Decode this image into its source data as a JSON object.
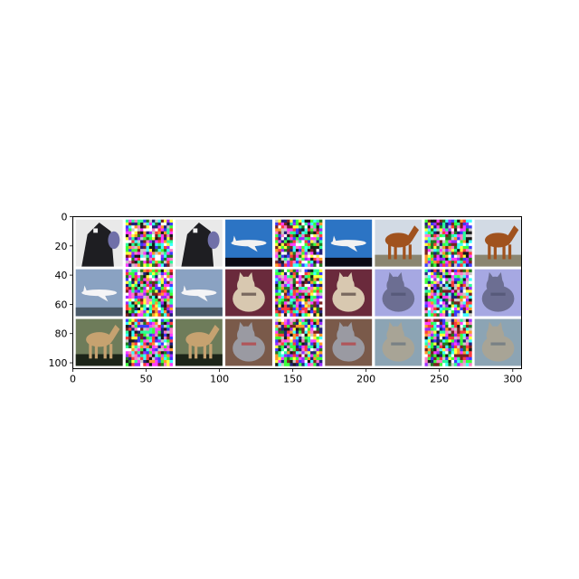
{
  "chart_data": {
    "type": "image_grid",
    "title": "",
    "xlabel": "",
    "ylabel": "",
    "xlim": [
      0,
      306
    ],
    "ylim": [
      104,
      0
    ],
    "x_ticks": [
      0,
      50,
      100,
      150,
      200,
      250,
      300
    ],
    "y_ticks": [
      0,
      20,
      40,
      60,
      80,
      100
    ],
    "x_tick_labels": [
      "0",
      "50",
      "100",
      "150",
      "200",
      "250",
      "300"
    ],
    "y_tick_labels": [
      "0",
      "20",
      "40",
      "60",
      "80",
      "100"
    ],
    "grid": false,
    "grid_layout": {
      "rows": 3,
      "cols": 9,
      "tile_size": 32,
      "padding": 2
    },
    "tiles": [
      {
        "row": 0,
        "col": 0,
        "kind": "image",
        "subject": "cow",
        "colors": {
          "bg": "#e9e9e9",
          "a": "#1e1e22",
          "b": "#7070a8"
        }
      },
      {
        "row": 0,
        "col": 1,
        "kind": "noise"
      },
      {
        "row": 0,
        "col": 2,
        "kind": "image",
        "subject": "cow",
        "colors": {
          "bg": "#e9e9e9",
          "a": "#1e1e22",
          "b": "#7070a8"
        }
      },
      {
        "row": 0,
        "col": 3,
        "kind": "image",
        "subject": "airplane",
        "colors": {
          "bg": "#2c74c4",
          "a": "#f2f2f2",
          "b": "#0a0a14"
        }
      },
      {
        "row": 0,
        "col": 4,
        "kind": "noise"
      },
      {
        "row": 0,
        "col": 5,
        "kind": "image",
        "subject": "airplane",
        "colors": {
          "bg": "#2c74c4",
          "a": "#f2f2f2",
          "b": "#0a0a14"
        }
      },
      {
        "row": 0,
        "col": 6,
        "kind": "image",
        "subject": "horse",
        "colors": {
          "bg": "#d2dae4",
          "a": "#a0521e",
          "b": "#8a8570"
        }
      },
      {
        "row": 0,
        "col": 7,
        "kind": "noise"
      },
      {
        "row": 0,
        "col": 8,
        "kind": "image",
        "subject": "horse",
        "colors": {
          "bg": "#d2dae4",
          "a": "#a0521e",
          "b": "#8a8570"
        }
      },
      {
        "row": 1,
        "col": 0,
        "kind": "image",
        "subject": "airplane",
        "colors": {
          "bg": "#8aa2c2",
          "a": "#f4f4f6",
          "b": "#4a5a6a"
        }
      },
      {
        "row": 1,
        "col": 1,
        "kind": "noise"
      },
      {
        "row": 1,
        "col": 2,
        "kind": "image",
        "subject": "airplane",
        "colors": {
          "bg": "#8aa2c2",
          "a": "#f4f4f6",
          "b": "#4a5a6a"
        }
      },
      {
        "row": 1,
        "col": 3,
        "kind": "image",
        "subject": "cat",
        "colors": {
          "bg": "#6a2a3c",
          "a": "#d8c8b0",
          "b": "#3a2a2a"
        }
      },
      {
        "row": 1,
        "col": 4,
        "kind": "noise"
      },
      {
        "row": 1,
        "col": 5,
        "kind": "image",
        "subject": "cat",
        "colors": {
          "bg": "#6a2a3c",
          "a": "#d8c8b0",
          "b": "#3a2a2a"
        }
      },
      {
        "row": 1,
        "col": 6,
        "kind": "image",
        "subject": "cat",
        "colors": {
          "bg": "#a6a8e2",
          "a": "#6c6e92",
          "b": "#4a4c6a"
        }
      },
      {
        "row": 1,
        "col": 7,
        "kind": "noise"
      },
      {
        "row": 1,
        "col": 8,
        "kind": "image",
        "subject": "cat",
        "colors": {
          "bg": "#a6a8e2",
          "a": "#6c6e92",
          "b": "#4a4c6a"
        }
      },
      {
        "row": 2,
        "col": 0,
        "kind": "image",
        "subject": "horse",
        "colors": {
          "bg": "#6e7c5a",
          "a": "#c6a270",
          "b": "#1c2418"
        }
      },
      {
        "row": 2,
        "col": 1,
        "kind": "noise"
      },
      {
        "row": 2,
        "col": 2,
        "kind": "image",
        "subject": "horse",
        "colors": {
          "bg": "#6e7c5a",
          "a": "#c6a270",
          "b": "#1c2418"
        }
      },
      {
        "row": 2,
        "col": 3,
        "kind": "image",
        "subject": "cat",
        "colors": {
          "bg": "#7a5a4a",
          "a": "#9a9aa2",
          "b": "#c02a2a"
        }
      },
      {
        "row": 2,
        "col": 4,
        "kind": "noise"
      },
      {
        "row": 2,
        "col": 5,
        "kind": "image",
        "subject": "cat",
        "colors": {
          "bg": "#7a5a4a",
          "a": "#9a9aa2",
          "b": "#c02a2a"
        }
      },
      {
        "row": 2,
        "col": 6,
        "kind": "image",
        "subject": "cat",
        "colors": {
          "bg": "#8ca4b4",
          "a": "#a8a496",
          "b": "#5a6a7a"
        }
      },
      {
        "row": 2,
        "col": 7,
        "kind": "noise"
      },
      {
        "row": 2,
        "col": 8,
        "kind": "image",
        "subject": "cat",
        "colors": {
          "bg": "#8ca4b4",
          "a": "#a8a496",
          "b": "#5a6a7a"
        }
      }
    ]
  }
}
